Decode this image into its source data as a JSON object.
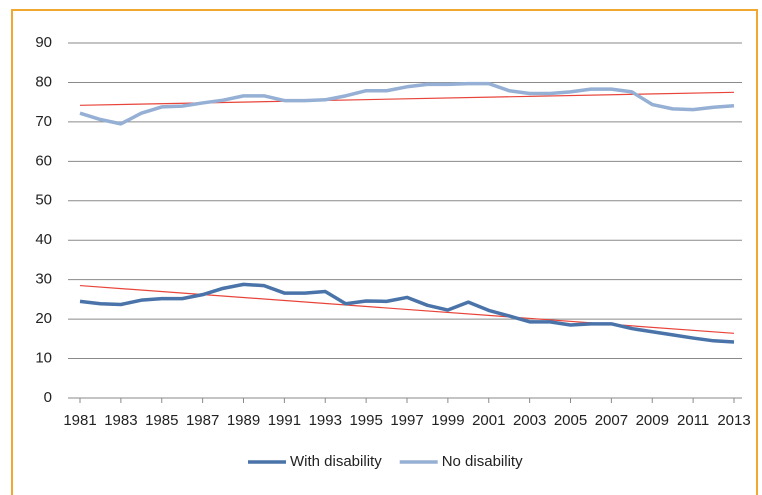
{
  "chart_data": {
    "type": "line",
    "x": [
      1981,
      1982,
      1983,
      1984,
      1985,
      1986,
      1987,
      1988,
      1989,
      1990,
      1991,
      1992,
      1993,
      1994,
      1995,
      1996,
      1997,
      1998,
      1999,
      2000,
      2001,
      2002,
      2003,
      2004,
      2005,
      2006,
      2007,
      2008,
      2009,
      2010,
      2011,
      2012,
      2013
    ],
    "series": [
      {
        "name": "With disability",
        "color": "#4a74a9",
        "values": [
          24.5,
          23.9,
          23.7,
          24.8,
          25.2,
          25.2,
          26.2,
          27.8,
          28.8,
          28.5,
          26.6,
          26.6,
          27.0,
          23.9,
          24.6,
          24.5,
          25.5,
          23.5,
          22.3,
          24.3,
          22.2,
          20.8,
          19.3,
          19.3,
          18.5,
          18.8,
          18.8,
          17.6,
          16.8,
          16.0,
          15.2,
          14.5,
          14.2
        ]
      },
      {
        "name": "No disability",
        "color": "#95b0d4",
        "values": [
          72.2,
          70.6,
          69.5,
          72.2,
          73.8,
          74.0,
          74.8,
          75.5,
          76.6,
          76.6,
          75.4,
          75.4,
          75.6,
          76.6,
          77.9,
          77.9,
          78.9,
          79.5,
          79.5,
          79.7,
          79.7,
          77.9,
          77.2,
          77.2,
          77.6,
          78.3,
          78.3,
          77.6,
          74.4,
          73.3,
          73.1,
          73.7,
          74.1
        ]
      }
    ],
    "trendlines": [
      {
        "color": "#e8443a",
        "x": [
          1981,
          2013
        ],
        "values": [
          28.5,
          16.4
        ]
      },
      {
        "color": "#e8443a",
        "x": [
          1981,
          2013
        ],
        "values": [
          74.2,
          77.5
        ]
      }
    ],
    "xlim": [
      1981,
      2013
    ],
    "xticks": [
      1981,
      1983,
      1985,
      1987,
      1989,
      1991,
      1993,
      1995,
      1997,
      1999,
      2001,
      2003,
      2005,
      2007,
      2009,
      2011,
      2013
    ],
    "ylim": [
      0,
      90
    ],
    "yticks": [
      0,
      10,
      20,
      30,
      40,
      50,
      60,
      70,
      80,
      90
    ],
    "grid": true,
    "legend": "bottom"
  }
}
